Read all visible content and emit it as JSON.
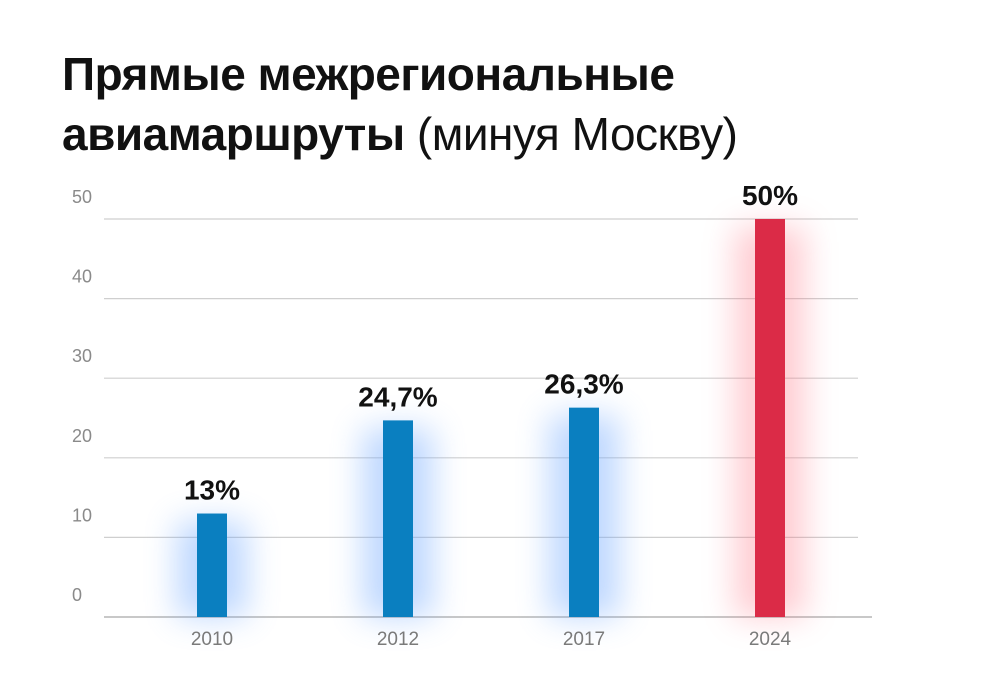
{
  "title": {
    "line1": "Прямые межрегиональные",
    "line2_bold": "авиамаршруты",
    "line2_light": "(минуя Москву)"
  },
  "colors": {
    "normal_bar": "#0a7fc0",
    "highlight_bar": "#db2b47",
    "normal_glow": "#6fa8ff",
    "highlight_glow": "#ff6f80"
  },
  "chart_data": {
    "type": "bar",
    "categories": [
      "2010",
      "2012",
      "2017",
      "2024"
    ],
    "values": [
      13,
      24.7,
      26.3,
      50
    ],
    "data_labels": [
      "13%",
      "24,7%",
      "26,3%",
      "50%"
    ],
    "highlight": [
      false,
      false,
      false,
      true
    ],
    "ylim": [
      0,
      50
    ],
    "yticks": [
      "0",
      "10",
      "20",
      "30",
      "40",
      "50"
    ],
    "grid": true,
    "xlabel": "",
    "ylabel": ""
  }
}
